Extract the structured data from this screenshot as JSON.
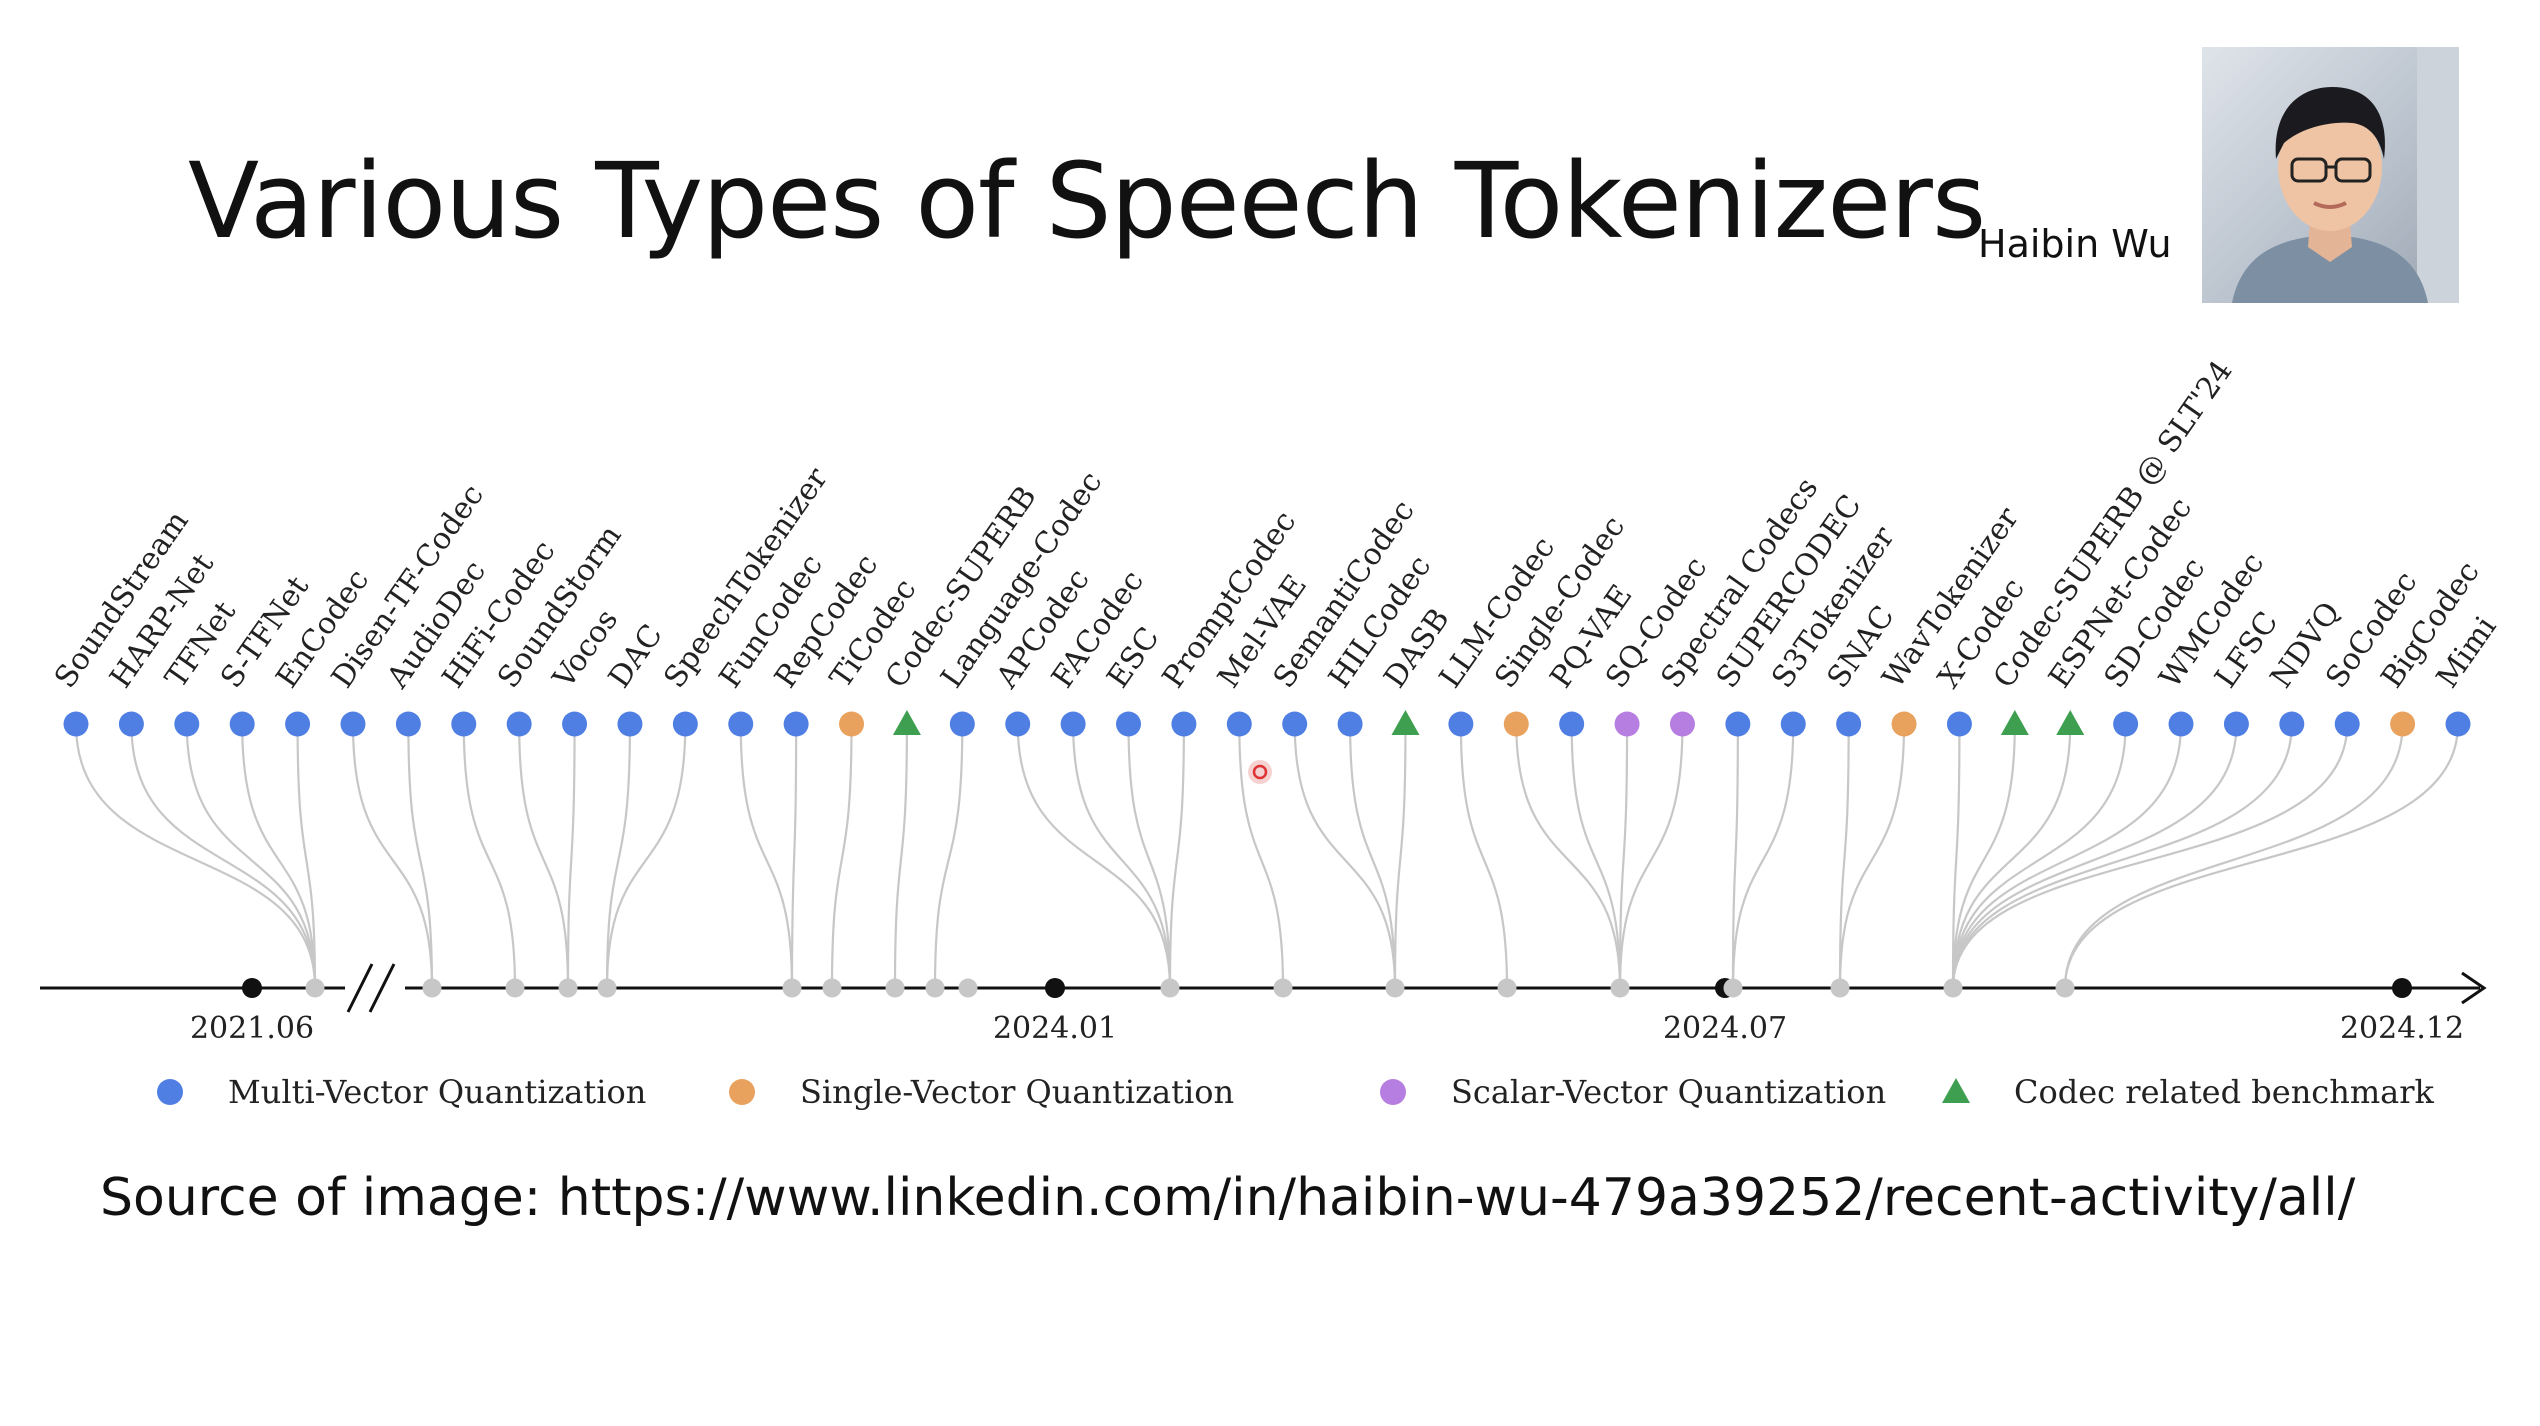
{
  "title": "Various Types of Speech Tokenizers",
  "presenter": {
    "name": "Haibin Wu",
    "video_icon": "presenter-webcam-icon"
  },
  "source": "Source of image: https://www.linkedin.com/in/haibin-wu-479a39252/recent-activity/all/",
  "colors": {
    "multi": "#4f7fe2",
    "single": "#e9a15e",
    "scalar": "#b57ee0",
    "benchmark": "#3f9f50",
    "connector": "#c7c7c7",
    "axis": "#111111"
  },
  "legend": [
    {
      "key": "multi",
      "label": "Multi-Vector Quantization",
      "shape": "circle"
    },
    {
      "key": "single",
      "label": "Single-Vector Quantization",
      "shape": "circle"
    },
    {
      "key": "scalar",
      "label": "Scalar-Vector Quantization",
      "shape": "circle"
    },
    {
      "key": "benchmark",
      "label": "Codec related benchmark",
      "shape": "triangle"
    }
  ],
  "axis_dates": [
    "2021.06",
    "2024.01",
    "2024.07",
    "2024.12"
  ],
  "axis_break": "//",
  "models": [
    {
      "name": "SoundStream",
      "type": "multi"
    },
    {
      "name": "HARP-Net",
      "type": "multi"
    },
    {
      "name": "TFNet",
      "type": "multi"
    },
    {
      "name": "S-TFNet",
      "type": "multi"
    },
    {
      "name": "EnCodec",
      "type": "multi"
    },
    {
      "name": "Disen-TF-Codec",
      "type": "multi"
    },
    {
      "name": "AudioDec",
      "type": "multi"
    },
    {
      "name": "HiFi-Codec",
      "type": "multi"
    },
    {
      "name": "SoundStorm",
      "type": "multi"
    },
    {
      "name": "Vocos",
      "type": "multi"
    },
    {
      "name": "DAC",
      "type": "multi"
    },
    {
      "name": "SpeechTokenizer",
      "type": "multi"
    },
    {
      "name": "FunCodec",
      "type": "multi"
    },
    {
      "name": "RepCodec",
      "type": "multi"
    },
    {
      "name": "TiCodec",
      "type": "single"
    },
    {
      "name": "Codec-SUPERB",
      "type": "benchmark"
    },
    {
      "name": "Language-Codec",
      "type": "multi"
    },
    {
      "name": "APCodec",
      "type": "multi"
    },
    {
      "name": "FACodec",
      "type": "multi"
    },
    {
      "name": "ESC",
      "type": "multi"
    },
    {
      "name": "PromptCodec",
      "type": "multi"
    },
    {
      "name": "Mel-VAE",
      "type": "multi"
    },
    {
      "name": "SemantiCodec",
      "type": "multi"
    },
    {
      "name": "HILCodec",
      "type": "multi"
    },
    {
      "name": "DASB",
      "type": "benchmark"
    },
    {
      "name": "LLM-Codec",
      "type": "multi"
    },
    {
      "name": "Single-Codec",
      "type": "single"
    },
    {
      "name": "PQ-VAE",
      "type": "multi"
    },
    {
      "name": "SQ-Codec",
      "type": "scalar"
    },
    {
      "name": "Spectral Codecs",
      "type": "scalar"
    },
    {
      "name": "SUPERCODEC",
      "type": "multi"
    },
    {
      "name": "S3Tokenizer",
      "type": "multi"
    },
    {
      "name": "SNAC",
      "type": "multi"
    },
    {
      "name": "WavTokenizer",
      "type": "single"
    },
    {
      "name": "X-Codec",
      "type": "multi"
    },
    {
      "name": "Codec-SUPERB @ SLT'24",
      "type": "benchmark"
    },
    {
      "name": "ESPNet-Codec",
      "type": "benchmark"
    },
    {
      "name": "SD-Codec",
      "type": "multi"
    },
    {
      "name": "WMCodec",
      "type": "multi"
    },
    {
      "name": "LFSC",
      "type": "multi"
    },
    {
      "name": "NDVQ",
      "type": "multi"
    },
    {
      "name": "SoCodec",
      "type": "multi"
    },
    {
      "name": "BigCodec",
      "type": "single"
    },
    {
      "name": "Mimi",
      "type": "multi"
    }
  ]
}
